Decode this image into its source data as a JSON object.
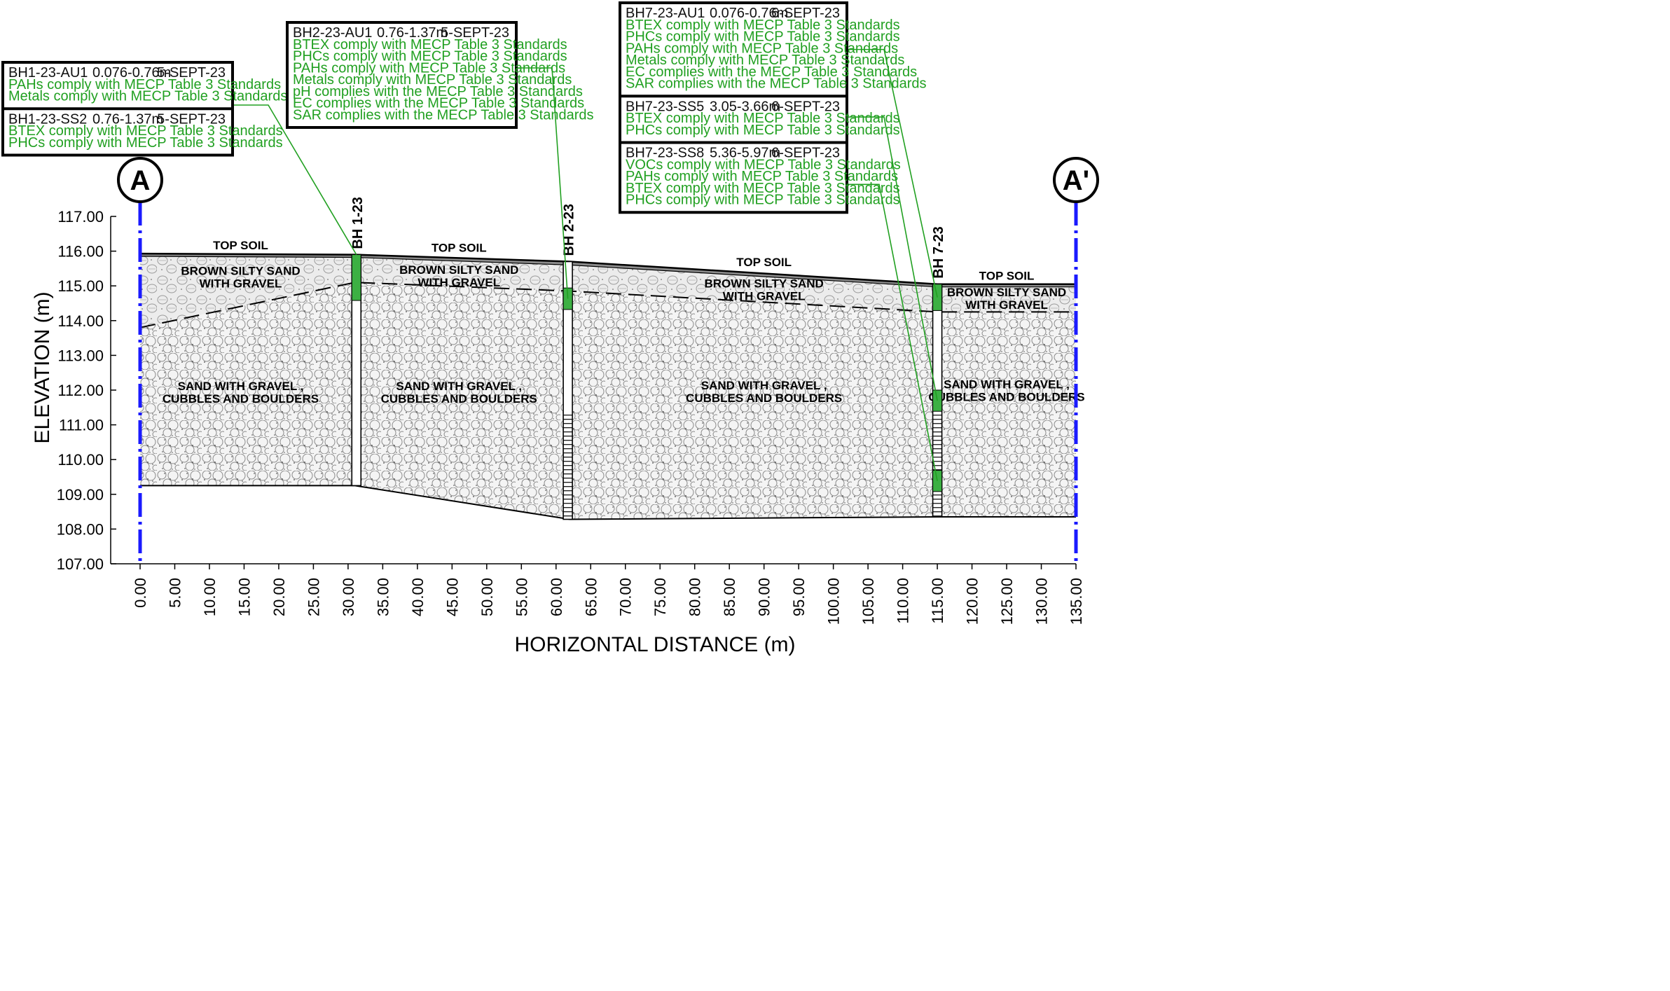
{
  "axes": {
    "xlabel": "HORIZONTAL DISTANCE (m)",
    "ylabel": "ELEVATION (m)",
    "xlim": [
      0,
      135
    ],
    "ylim": [
      107,
      117
    ],
    "xticks": [
      "0.00",
      "5.00",
      "10.00",
      "15.00",
      "20.00",
      "25.00",
      "30.00",
      "35.00",
      "40.00",
      "45.00",
      "50.00",
      "55.00",
      "60.00",
      "65.00",
      "70.00",
      "75.00",
      "80.00",
      "85.00",
      "90.00",
      "95.00",
      "100.00",
      "105.00",
      "110.00",
      "115.00",
      "120.00",
      "125.00",
      "130.00",
      "135.00"
    ],
    "yticks": [
      "107.00",
      "108.00",
      "109.00",
      "110.00",
      "111.00",
      "112.00",
      "113.00",
      "114.00",
      "115.00",
      "116.00",
      "117.00"
    ]
  },
  "section_markers": {
    "start": "A",
    "end": "A'"
  },
  "profile": {
    "x": [
      0,
      31,
      62,
      115,
      135
    ],
    "ground": [
      115.93,
      115.9,
      115.7,
      115.05,
      115.05
    ],
    "topsoil_base": [
      115.85,
      115.82,
      115.6,
      114.97,
      114.97
    ],
    "layer_boundary": [
      113.8,
      115.1,
      114.85,
      114.25,
      114.25
    ],
    "base": [
      109.25,
      109.25,
      108.28,
      108.35,
      108.35
    ]
  },
  "colors": {
    "sample_green": "#3cb043",
    "marker_blue": "#1a1aff",
    "text_green": "#21a021"
  },
  "boreholes": [
    {
      "id": "BH 1-23",
      "x": 31.2,
      "top": 115.9,
      "bottom": 109.25,
      "samples": [
        [
          114.58,
          115.9
        ]
      ],
      "screen": null
    },
    {
      "id": "BH 2-23",
      "x": 61.7,
      "top": 115.7,
      "bottom": 108.28,
      "samples": [
        [
          114.32,
          114.94
        ]
      ],
      "screen": [
        108.28,
        111.28
      ]
    },
    {
      "id": "BH 7-23",
      "x": 115.0,
      "top": 115.05,
      "bottom": 108.35,
      "samples": [
        [
          114.29,
          115.05
        ],
        [
          111.39,
          112.0
        ],
        [
          109.08,
          109.69
        ]
      ],
      "screen": [
        108.35,
        111.4
      ]
    }
  ],
  "layer_labels": [
    {
      "text": [
        "TOP SOIL"
      ],
      "x": 14.5,
      "y": 116.05
    },
    {
      "text": [
        "BROWN SILTY SAND",
        "WITH GRAVEL"
      ],
      "x": 14.5,
      "y": 115.32
    },
    {
      "text": [
        "SAND WITH GRAVEL ,",
        "CUBBLES AND BOULDERS"
      ],
      "x": 14.5,
      "y": 112.0
    },
    {
      "text": [
        "TOP SOIL"
      ],
      "x": 46,
      "y": 115.98
    },
    {
      "text": [
        "BROWN SILTY SAND",
        "WITH GRAVEL"
      ],
      "x": 46,
      "y": 115.35
    },
    {
      "text": [
        "SAND WITH GRAVEL ,",
        "CUBBLES AND BOULDERS"
      ],
      "x": 46,
      "y": 112.0
    },
    {
      "text": [
        "TOP SOIL"
      ],
      "x": 90,
      "y": 115.57
    },
    {
      "text": [
        "BROWN SILTY SAND",
        "WITH GRAVEL"
      ],
      "x": 90,
      "y": 114.95
    },
    {
      "text": [
        "SAND WITH GRAVEL ,",
        "CUBBLES AND BOULDERS"
      ],
      "x": 90,
      "y": 112.02
    },
    {
      "text": [
        "TOP SOIL"
      ],
      "x": 125,
      "y": 115.18
    },
    {
      "text": [
        "BROWN SILTY SAND",
        "WITH GRAVEL"
      ],
      "x": 125,
      "y": 114.7
    },
    {
      "text": [
        "SAND WITH GRAVEL ,",
        "CUBBLES AND BOULDERS"
      ],
      "x": 125,
      "y": 112.05
    }
  ],
  "sample_boxes": [
    {
      "group": "bh1",
      "entries": [
        {
          "id": "BH1-23-AU1",
          "depth": "0.076-0.76m",
          "date": "5-SEPT-23",
          "lines": [
            "PAHs comply with MECP Table 3 Standards",
            "Metals comply with MECP Table 3 Standards"
          ]
        },
        {
          "id": "BH1-23-SS2",
          "depth": "0.76-1.37m",
          "date": "5-SEPT-23",
          "lines": [
            "BTEX comply with MECP Table 3 Standards",
            "PHCs comply with MECP Table 3 Standards"
          ]
        }
      ]
    },
    {
      "group": "bh2",
      "entries": [
        {
          "id": "BH2-23-AU1",
          "depth": "0.76-1.37m",
          "date": "5-SEPT-23",
          "lines": [
            "BTEX comply with MECP Table 3 Standards",
            "PHCs comply with MECP Table 3 Standards",
            "PAHs comply with MECP Table 3 Standards",
            "Metals comply with MECP Table 3 Standards",
            "pH complies with the MECP Table 3 Standards",
            "EC complies with the MECP Table 3 Standards",
            "SAR complies with the MECP Table 3 Standards"
          ]
        }
      ]
    },
    {
      "group": "bh7",
      "entries": [
        {
          "id": "BH7-23-AU1",
          "depth": "0.076-0.76m",
          "date": "6-SEPT-23",
          "lines": [
            "BTEX comply with MECP Table 3 Standards",
            "PHCs comply with MECP Table 3 Standards",
            "PAHs comply with MECP Table 3 Standards",
            "Metals comply with MECP Table 3 Standards",
            "EC complies with the MECP Table 3 Standards",
            "SAR complies with the MECP Table 3 Standards"
          ]
        },
        {
          "id": "BH7-23-SS5",
          "depth": "3.05-3.66m",
          "date": "6-SEPT-23",
          "lines": [
            "BTEX comply with MECP Table 3 Standards",
            "PHCs comply with MECP Table 3 Standards"
          ]
        },
        {
          "id": "BH7-23-SS8",
          "depth": "5.36-5.97m",
          "date": "6-SEPT-23",
          "lines": [
            "VOCs comply with MECP Table 3 Standards",
            "PAHs comply with MECP Table 3 Standards",
            "BTEX comply with MECP Table 3 Standards",
            "PHCs comply with MECP Table 3 Standards"
          ]
        }
      ]
    }
  ]
}
